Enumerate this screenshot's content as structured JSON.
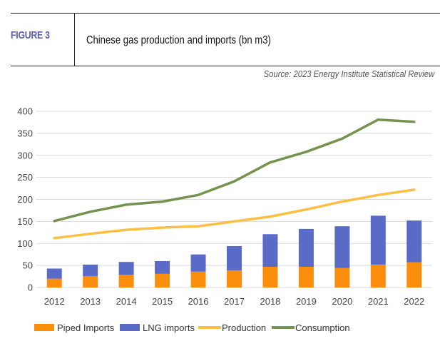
{
  "header": {
    "figure_label": "FIGURE 3",
    "title": "Chinese gas production and imports (bn m3)",
    "source": "Source: 2023 Energy Institute Statistical Review"
  },
  "colors": {
    "figure_label": "#5b5fae",
    "piped": "#fb8f0d",
    "lng": "#5a6bc7",
    "production": "#fbbf45",
    "consumption": "#76924f",
    "grid": "#d9d9d9"
  },
  "chart_data": {
    "type": "bar",
    "subtype": "stacked bar with line overlays",
    "title": "Chinese gas production and imports (bn m3)",
    "xlabel": "",
    "ylabel": "",
    "ylim": [
      0,
      400
    ],
    "yticks": [
      0,
      50,
      100,
      150,
      200,
      250,
      300,
      350,
      400
    ],
    "grid": true,
    "legend_position": "bottom",
    "categories": [
      "2012",
      "2013",
      "2014",
      "2015",
      "2016",
      "2017",
      "2018",
      "2019",
      "2020",
      "2021",
      "2022"
    ],
    "series": [
      {
        "name": "Piped Imports",
        "type": "bar",
        "stack": "imports",
        "values": [
          20,
          26,
          29,
          31,
          36,
          39,
          47,
          47,
          44,
          52,
          57
        ]
      },
      {
        "name": "LNG imports",
        "type": "bar",
        "stack": "imports",
        "values": [
          23,
          26,
          29,
          29,
          39,
          55,
          74,
          86,
          95,
          111,
          95
        ]
      },
      {
        "name": "Production",
        "type": "line",
        "values": [
          112,
          122,
          131,
          136,
          139,
          150,
          161,
          177,
          195,
          210,
          222
        ]
      },
      {
        "name": "Consumption",
        "type": "line",
        "values": [
          151,
          172,
          188,
          195,
          210,
          241,
          284,
          308,
          338,
          381,
          376
        ]
      }
    ]
  }
}
